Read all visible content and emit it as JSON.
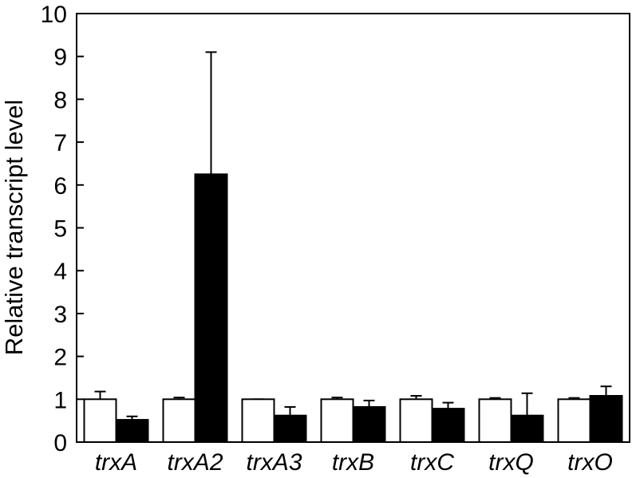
{
  "chart_data": {
    "type": "bar",
    "title": "",
    "xlabel": "",
    "ylabel": "Relative transcript level",
    "ylim": [
      0,
      10
    ],
    "yticks": [
      0,
      1,
      2,
      3,
      4,
      5,
      6,
      7,
      8,
      9,
      10
    ],
    "categories": [
      "trxA",
      "trxA2",
      "trxA3",
      "trxB",
      "trxC",
      "trxQ",
      "trxO"
    ],
    "series": [
      {
        "fill": "#ffffff",
        "values": [
          1.0,
          1.0,
          1.0,
          1.0,
          1.0,
          1.0,
          1.0
        ],
        "errors": [
          0.18,
          0.04,
          0.0,
          0.04,
          0.08,
          0.03,
          0.03
        ]
      },
      {
        "fill": "#000000",
        "values": [
          0.52,
          6.25,
          0.62,
          0.82,
          0.78,
          0.62,
          1.08
        ],
        "errors": [
          0.08,
          2.85,
          0.2,
          0.15,
          0.14,
          0.52,
          0.22
        ]
      }
    ],
    "grid": false,
    "legend": "none"
  }
}
